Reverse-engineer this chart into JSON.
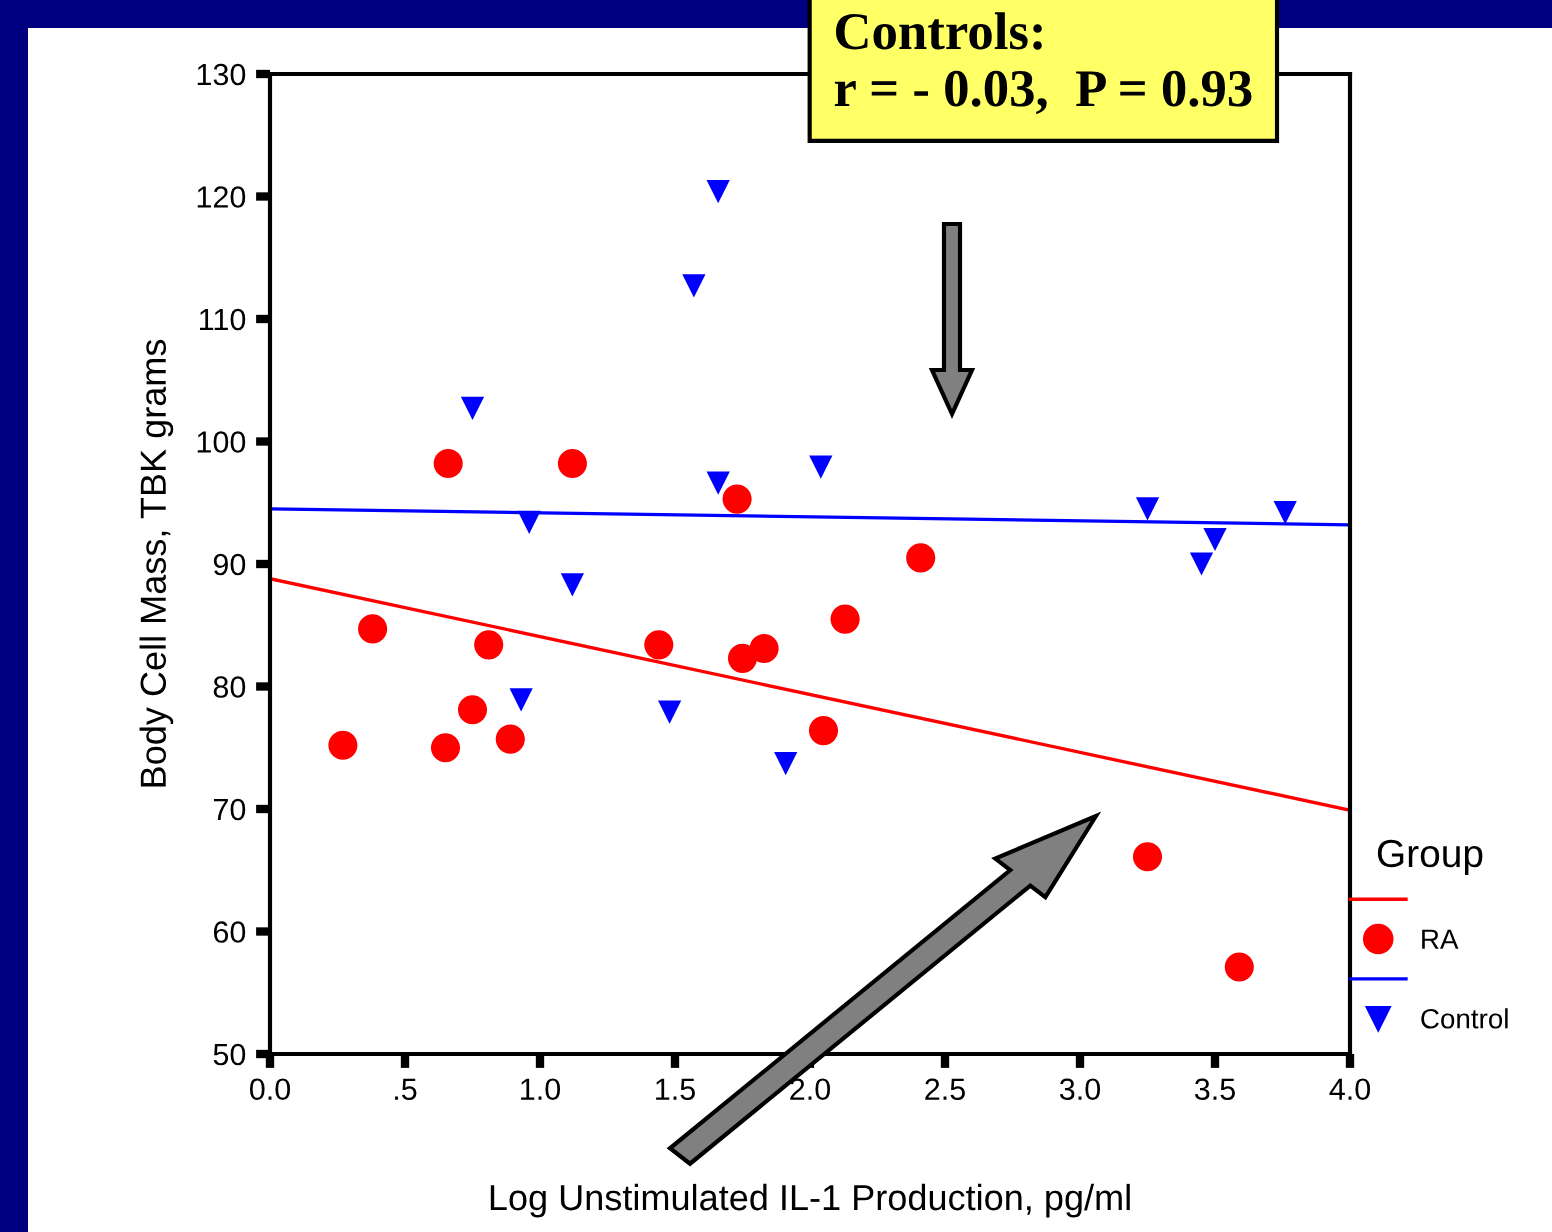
{
  "chart_data": {
    "type": "scatter",
    "xlabel": "Log Unstimulated IL-1 Production, pg/ml",
    "ylabel": "Body Cell Mass, TBK grams",
    "legend_title": "Group",
    "annotations": [
      "Controls:\nr = - 0.03,  P = 0.93"
    ],
    "series": [
      {
        "type": "line",
        "color": "#ff0000",
        "x": [
          0,
          4.0
        ],
        "values": [
          88.8,
          69.9
        ]
      },
      {
        "name": "RA",
        "color": "#ff0000",
        "marker": "circle",
        "x": [
          0.27,
          0.38,
          0.65,
          0.66,
          0.75,
          0.81,
          0.89,
          1.12,
          1.44,
          1.73,
          1.75,
          1.83,
          2.05,
          2.13,
          2.41,
          3.25,
          3.59
        ],
        "values": [
          75.2,
          84.7,
          75.0,
          98.2,
          78.1,
          83.4,
          75.7,
          98.2,
          83.4,
          95.3,
          82.3,
          83.1,
          76.4,
          85.5,
          90.5,
          66.1,
          57.1
        ]
      },
      {
        "type": "line",
        "color": "#0000ff",
        "x": [
          0,
          4.0
        ],
        "values": [
          94.5,
          93.2
        ]
      },
      {
        "name": "Control",
        "color": "#0000ff",
        "marker": "triangle",
        "x": [
          0.75,
          0.93,
          0.96,
          1.12,
          1.48,
          1.57,
          1.66,
          1.66,
          1.91,
          2.04,
          3.25,
          3.45,
          3.5,
          3.76
        ],
        "values": [
          102.7,
          78.9,
          93.4,
          88.3,
          77.9,
          112.7,
          120.4,
          96.6,
          73.7,
          97.9,
          94.5,
          90.0,
          92.0,
          94.2
        ]
      }
    ],
    "xlim": [
      0,
      4.0
    ],
    "xticks": [
      {
        "value": 0,
        "label": "0.0"
      },
      {
        "value": 0.5,
        "label": ".5"
      },
      {
        "value": 1.0,
        "label": "1.0"
      },
      {
        "value": 1.5,
        "label": "1.5"
      },
      {
        "value": 2.0,
        "label": "2.0"
      },
      {
        "value": 2.5,
        "label": "2.5"
      },
      {
        "value": 3.0,
        "label": "3.0"
      },
      {
        "value": 3.5,
        "label": "3.5"
      },
      {
        "value": 4.0,
        "label": "4.0"
      }
    ],
    "ylim": [
      50,
      130
    ],
    "yticks": [
      50,
      60,
      70,
      80,
      90,
      100,
      110,
      120,
      130
    ],
    "grid": false,
    "legend": "right"
  }
}
